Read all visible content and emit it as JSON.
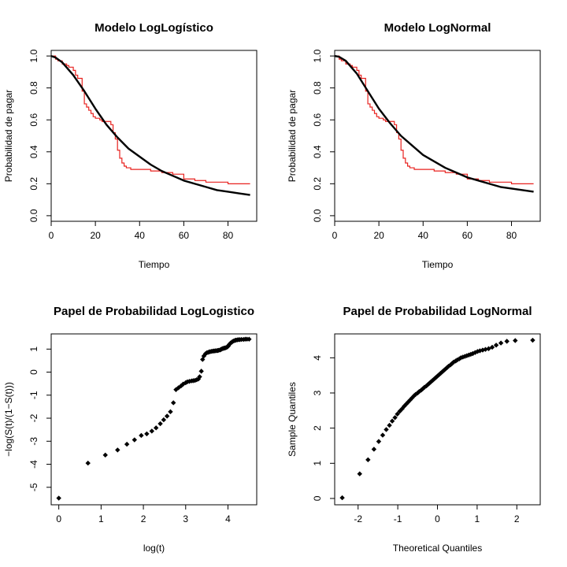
{
  "chart_data": [
    {
      "id": "p1",
      "type": "line",
      "title": "Modelo LogLogístico",
      "xlabel": "Tiempo",
      "ylabel": "Probabilidad de pagar",
      "xlim": [
        0,
        93
      ],
      "ylim": [
        -0.035,
        1.035
      ],
      "xticks": [
        0,
        20,
        40,
        60,
        80
      ],
      "yticks": [
        0.0,
        0.2,
        0.4,
        0.6,
        0.8,
        1.0
      ],
      "series": [
        {
          "kind": "step",
          "color": "#e8211e",
          "x": [
            0,
            2,
            3,
            5,
            7,
            8,
            10,
            11,
            12,
            14,
            15,
            16,
            17,
            18,
            19,
            20,
            22,
            23,
            25,
            27,
            28,
            29,
            30,
            31,
            32,
            33,
            34,
            35,
            36,
            38,
            40,
            45,
            50,
            55,
            60,
            65,
            70,
            75,
            80,
            85,
            90
          ],
          "y": [
            1.0,
            0.98,
            0.97,
            0.95,
            0.94,
            0.93,
            0.91,
            0.88,
            0.86,
            0.78,
            0.7,
            0.68,
            0.66,
            0.64,
            0.62,
            0.61,
            0.6,
            0.59,
            0.59,
            0.57,
            0.52,
            0.48,
            0.41,
            0.36,
            0.33,
            0.31,
            0.3,
            0.3,
            0.29,
            0.29,
            0.29,
            0.28,
            0.27,
            0.26,
            0.23,
            0.22,
            0.21,
            0.21,
            0.2,
            0.2,
            0.2
          ]
        },
        {
          "kind": "line",
          "color": "#000000",
          "x": [
            0,
            2,
            5,
            10,
            15,
            20,
            25,
            30,
            35,
            40,
            45,
            50,
            55,
            60,
            65,
            70,
            75,
            80,
            85,
            90
          ],
          "y": [
            1.0,
            0.99,
            0.96,
            0.88,
            0.78,
            0.67,
            0.57,
            0.49,
            0.42,
            0.37,
            0.32,
            0.28,
            0.25,
            0.22,
            0.2,
            0.18,
            0.16,
            0.15,
            0.14,
            0.13
          ]
        }
      ]
    },
    {
      "id": "p2",
      "type": "line",
      "title": "Modelo LogNormal",
      "xlabel": "Tiempo",
      "ylabel": "Probabilidad de pagar",
      "xlim": [
        0,
        93
      ],
      "ylim": [
        -0.035,
        1.035
      ],
      "xticks": [
        0,
        20,
        40,
        60,
        80
      ],
      "yticks": [
        0.0,
        0.2,
        0.4,
        0.6,
        0.8,
        1.0
      ],
      "series": [
        {
          "kind": "step",
          "color": "#e8211e",
          "x": [
            0,
            2,
            3,
            5,
            7,
            8,
            10,
            11,
            12,
            14,
            15,
            16,
            17,
            18,
            19,
            20,
            22,
            23,
            25,
            27,
            28,
            29,
            30,
            31,
            32,
            33,
            34,
            35,
            36,
            38,
            40,
            45,
            50,
            55,
            60,
            65,
            70,
            75,
            80,
            85,
            90
          ],
          "y": [
            1.0,
            0.98,
            0.97,
            0.95,
            0.94,
            0.93,
            0.91,
            0.88,
            0.86,
            0.78,
            0.7,
            0.68,
            0.66,
            0.64,
            0.62,
            0.61,
            0.6,
            0.59,
            0.59,
            0.57,
            0.52,
            0.48,
            0.41,
            0.36,
            0.33,
            0.31,
            0.3,
            0.3,
            0.29,
            0.29,
            0.29,
            0.28,
            0.27,
            0.26,
            0.23,
            0.22,
            0.21,
            0.21,
            0.2,
            0.2,
            0.2
          ]
        },
        {
          "kind": "line",
          "color": "#000000",
          "x": [
            0,
            2,
            5,
            10,
            15,
            20,
            25,
            30,
            35,
            40,
            45,
            50,
            55,
            60,
            65,
            70,
            75,
            80,
            85,
            90
          ],
          "y": [
            1.0,
            0.995,
            0.97,
            0.89,
            0.78,
            0.67,
            0.58,
            0.5,
            0.44,
            0.38,
            0.34,
            0.3,
            0.27,
            0.24,
            0.22,
            0.2,
            0.18,
            0.17,
            0.16,
            0.15
          ]
        }
      ]
    },
    {
      "id": "p3",
      "type": "scatter",
      "title": "Papel de Probabilidad LogLogistico",
      "xlabel": "log(t)",
      "ylabel": "−log(S(t)/(1−S(t)))",
      "xlim": [
        -0.18,
        4.68
      ],
      "ylim": [
        -5.76,
        1.66
      ],
      "xticks": [
        0,
        1,
        2,
        3,
        4
      ],
      "yticks": [
        -5,
        -4,
        -3,
        -2,
        -1,
        0,
        1
      ],
      "marker_color": "#000000",
      "series": [
        {
          "x": [
            0,
            0.69,
            1.1,
            1.39,
            1.61,
            1.79,
            1.95,
            2.08,
            2.2,
            2.3,
            2.4,
            2.48,
            2.56,
            2.64,
            2.71,
            2.77,
            2.83,
            2.89,
            2.94,
            3.0,
            3.04,
            3.09,
            3.14,
            3.18,
            3.22,
            3.26,
            3.3,
            3.33,
            3.37,
            3.4,
            3.43,
            3.47,
            3.5,
            3.53,
            3.56,
            3.58,
            3.61,
            3.64,
            3.66,
            3.69,
            3.71,
            3.74,
            3.76,
            3.78,
            3.81,
            3.83,
            3.85,
            3.87,
            3.89,
            3.91,
            3.93,
            3.95,
            3.97,
            3.99,
            4.01,
            4.03,
            4.06,
            4.09,
            4.11,
            4.14,
            4.17,
            4.19,
            4.22,
            4.25,
            4.28,
            4.32,
            4.37,
            4.41,
            4.45,
            4.5
          ],
          "y": [
            -5.47,
            -3.95,
            -3.6,
            -3.38,
            -3.13,
            -2.94,
            -2.75,
            -2.68,
            -2.56,
            -2.42,
            -2.24,
            -2.07,
            -1.91,
            -1.72,
            -1.33,
            -0.76,
            -0.68,
            -0.6,
            -0.52,
            -0.46,
            -0.42,
            -0.4,
            -0.38,
            -0.37,
            -0.36,
            -0.33,
            -0.3,
            -0.2,
            0.04,
            0.55,
            0.7,
            0.8,
            0.84,
            0.86,
            0.88,
            0.89,
            0.9,
            0.91,
            0.92,
            0.92,
            0.93,
            0.93,
            0.94,
            0.95,
            0.96,
            0.98,
            1.0,
            1.02,
            1.03,
            1.04,
            1.05,
            1.06,
            1.08,
            1.1,
            1.14,
            1.2,
            1.26,
            1.3,
            1.33,
            1.36,
            1.38,
            1.39,
            1.4,
            1.41,
            1.41,
            1.42,
            1.42,
            1.43,
            1.43,
            1.43
          ]
        }
      ]
    },
    {
      "id": "p4",
      "type": "scatter",
      "title": "Papel de Probabilidad LogNormal",
      "xlabel": "Theoretical Quantiles",
      "ylabel": "Sample Quantiles",
      "xlim": [
        -2.59,
        2.59
      ],
      "ylim": [
        -0.18,
        4.68
      ],
      "xticks": [
        -2,
        -1,
        0,
        1,
        2
      ],
      "yticks": [
        0,
        1,
        2,
        3,
        4
      ],
      "marker_color": "#000000",
      "series": [
        {
          "x": [
            -2.4,
            -1.96,
            -1.75,
            -1.6,
            -1.48,
            -1.38,
            -1.29,
            -1.21,
            -1.14,
            -1.07,
            -1.01,
            -0.95,
            -0.89,
            -0.84,
            -0.79,
            -0.74,
            -0.69,
            -0.64,
            -0.59,
            -0.55,
            -0.5,
            -0.46,
            -0.41,
            -0.37,
            -0.33,
            -0.28,
            -0.24,
            -0.2,
            -0.16,
            -0.12,
            -0.08,
            -0.04,
            0.0,
            0.04,
            0.08,
            0.12,
            0.16,
            0.2,
            0.24,
            0.28,
            0.33,
            0.37,
            0.41,
            0.46,
            0.5,
            0.55,
            0.59,
            0.64,
            0.69,
            0.74,
            0.79,
            0.84,
            0.89,
            0.95,
            1.01,
            1.07,
            1.14,
            1.21,
            1.29,
            1.38,
            1.48,
            1.6,
            1.75,
            1.96,
            2.4
          ],
          "y": [
            0.02,
            0.7,
            1.1,
            1.4,
            1.62,
            1.8,
            1.96,
            2.08,
            2.2,
            2.3,
            2.4,
            2.48,
            2.55,
            2.62,
            2.68,
            2.74,
            2.8,
            2.86,
            2.92,
            2.96,
            3.0,
            3.04,
            3.08,
            3.12,
            3.16,
            3.2,
            3.24,
            3.28,
            3.32,
            3.36,
            3.4,
            3.44,
            3.48,
            3.52,
            3.56,
            3.6,
            3.64,
            3.68,
            3.72,
            3.76,
            3.8,
            3.84,
            3.88,
            3.91,
            3.94,
            3.97,
            4.0,
            4.02,
            4.04,
            4.06,
            4.08,
            4.1,
            4.12,
            4.15,
            4.18,
            4.2,
            4.22,
            4.24,
            4.26,
            4.3,
            4.36,
            4.42,
            4.47,
            4.49,
            4.5
          ]
        }
      ]
    }
  ]
}
